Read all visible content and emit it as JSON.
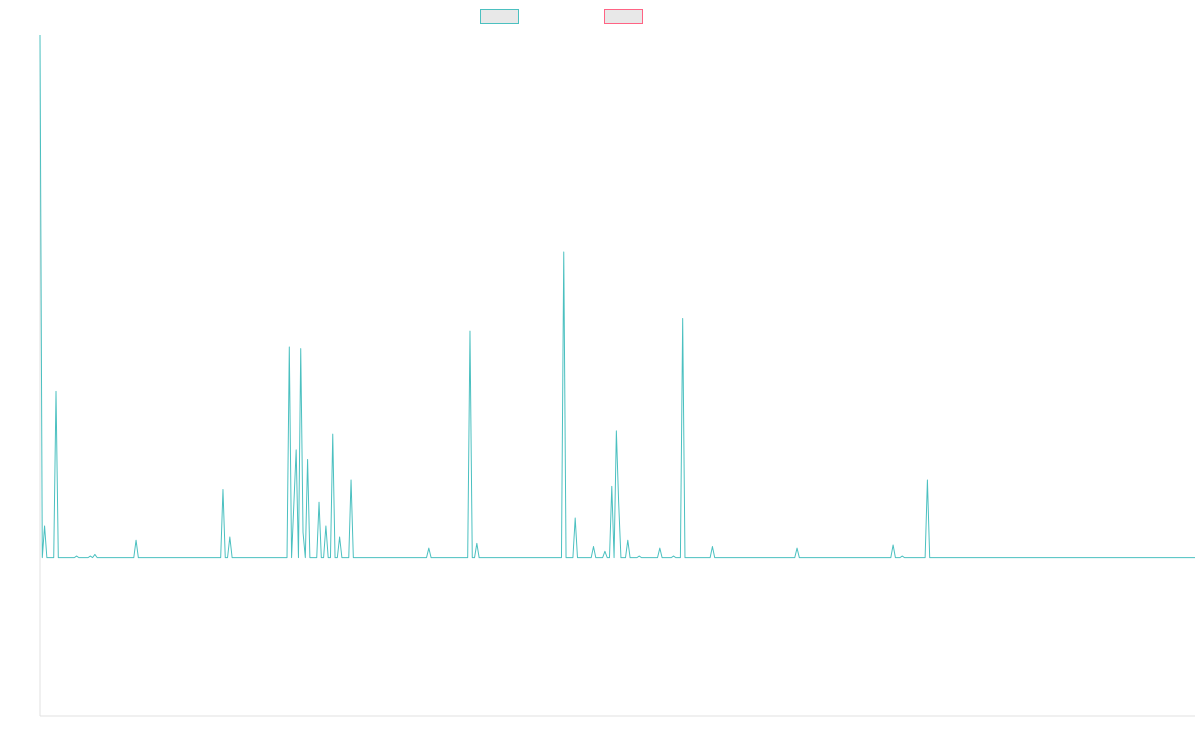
{
  "chart_data": {
    "type": "line",
    "title": "",
    "xlabel": "",
    "ylabel": "",
    "legend_position": "top-center",
    "grid": false,
    "ylim": [
      -1.0,
      3.3
    ],
    "series": [
      {
        "color": "#4bc0c0",
        "values": [
          3.3,
          0.0,
          0.2,
          0.0,
          0.0,
          0.0,
          0.0,
          1.05,
          0.0,
          0.0,
          0.0,
          0.0,
          0.0,
          0.0,
          0.0,
          0.0,
          0.01,
          0.0,
          0.0,
          0.0,
          0.0,
          0.0,
          0.01,
          0.0,
          0.02,
          0.0,
          0.0,
          0.0,
          0.0,
          0.0,
          0.0,
          0.0,
          0.0,
          0.0,
          0.0,
          0.0,
          0.0,
          0.0,
          0.0,
          0.0,
          0.0,
          0.0,
          0.11,
          0.0,
          0.0,
          0.0,
          0.0,
          0.0,
          0.0,
          0.0,
          0.0,
          0.0,
          0.0,
          0.0,
          0.0,
          0.0,
          0.0,
          0.0,
          0.0,
          0.0,
          0.0,
          0.0,
          0.0,
          0.0,
          0.0,
          0.0,
          0.0,
          0.0,
          0.0,
          0.0,
          0.0,
          0.0,
          0.0,
          0.0,
          0.0,
          0.0,
          0.0,
          0.0,
          0.0,
          0.0,
          0.43,
          0.0,
          0.0,
          0.13,
          0.0,
          0.0,
          0.0,
          0.0,
          0.0,
          0.0,
          0.0,
          0.0,
          0.0,
          0.0,
          0.0,
          0.0,
          0.0,
          0.0,
          0.0,
          0.0,
          0.0,
          0.0,
          0.0,
          0.0,
          0.0,
          0.0,
          0.0,
          0.0,
          0.0,
          1.33,
          0.0,
          0.34,
          0.68,
          0.0,
          1.32,
          0.16,
          0.0,
          0.62,
          0.0,
          0.0,
          0.0,
          0.0,
          0.35,
          0.0,
          0.0,
          0.2,
          0.0,
          0.0,
          0.78,
          0.0,
          0.0,
          0.13,
          0.0,
          0.0,
          0.0,
          0.0,
          0.49,
          0.0,
          0.0,
          0.0,
          0.0,
          0.0,
          0.0,
          0.0,
          0.0,
          0.0,
          0.0,
          0.0,
          0.0,
          0.0,
          0.0,
          0.0,
          0.0,
          0.0,
          0.0,
          0.0,
          0.0,
          0.0,
          0.0,
          0.0,
          0.0,
          0.0,
          0.0,
          0.0,
          0.0,
          0.0,
          0.0,
          0.0,
          0.0,
          0.0,
          0.06,
          0.0,
          0.0,
          0.0,
          0.0,
          0.0,
          0.0,
          0.0,
          0.0,
          0.0,
          0.0,
          0.0,
          0.0,
          0.0,
          0.0,
          0.0,
          0.0,
          0.0,
          1.43,
          0.0,
          0.0,
          0.09,
          0.0,
          0.0,
          0.0,
          0.0,
          0.0,
          0.0,
          0.0,
          0.0,
          0.0,
          0.0,
          0.0,
          0.0,
          0.0,
          0.0,
          0.0,
          0.0,
          0.0,
          0.0,
          0.0,
          0.0,
          0.0,
          0.0,
          0.0,
          0.0,
          0.0,
          0.0,
          0.0,
          0.0,
          0.0,
          0.0,
          0.0,
          0.0,
          0.0,
          0.0,
          0.0,
          0.0,
          0.0,
          1.93,
          0.0,
          0.0,
          0.0,
          0.0,
          0.25,
          0.0,
          0.0,
          0.0,
          0.0,
          0.0,
          0.0,
          0.0,
          0.07,
          0.0,
          0.0,
          0.0,
          0.0,
          0.04,
          0.0,
          0.0,
          0.45,
          0.0,
          0.8,
          0.35,
          0.0,
          0.0,
          0.0,
          0.11,
          0.0,
          0.0,
          0.0,
          0.0,
          0.01,
          0.0,
          0.0,
          0.0,
          0.0,
          0.0,
          0.0,
          0.0,
          0.0,
          0.06,
          0.0,
          0.0,
          0.0,
          0.0,
          0.0,
          0.01,
          0.0,
          0.0,
          0.0,
          1.51,
          0.0,
          0.0,
          0.0,
          0.0,
          0.0,
          0.0,
          0.0,
          0.0,
          0.0,
          0.0,
          0.0,
          0.0,
          0.07,
          0.0,
          0.0,
          0.0,
          0.0,
          0.0,
          0.0,
          0.0,
          0.0,
          0.0,
          0.0,
          0.0,
          0.0,
          0.0,
          0.0,
          0.0,
          0.0,
          0.0,
          0.0,
          0.0,
          0.0,
          0.0,
          0.0,
          0.0,
          0.0,
          0.0,
          0.0,
          0.0,
          0.0,
          0.0,
          0.0,
          0.0,
          0.0,
          0.0,
          0.0,
          0.0,
          0.0,
          0.06,
          0.0,
          0.0,
          0.0,
          0.0,
          0.0,
          0.0,
          0.0,
          0.0,
          0.0,
          0.0,
          0.0,
          0.0,
          0.0,
          0.0,
          0.0,
          0.0,
          0.0,
          0.0,
          0.0,
          0.0,
          0.0,
          0.0,
          0.0,
          0.0,
          0.0,
          0.0,
          0.0,
          0.0,
          0.0,
          0.0,
          0.0,
          0.0,
          0.0,
          0.0,
          0.0,
          0.0,
          0.0,
          0.0,
          0.0,
          0.0,
          0.0,
          0.08,
          0.0,
          0.0,
          0.0,
          0.01,
          0.0,
          0.0,
          0.0,
          0.0,
          0.0,
          0.0,
          0.0,
          0.0,
          0.0,
          0.0,
          0.49,
          0.0,
          0.0,
          0.0,
          0.0,
          0.0,
          0.0,
          0.0,
          0.0,
          0.0,
          0.0,
          0.0,
          0.0,
          0.0,
          0.0,
          0.0,
          0.0,
          0.0,
          0.0,
          0.0,
          0.0,
          0.0,
          0.0,
          0.0,
          0.0,
          0.0,
          0.0,
          0.0,
          0.0,
          0.0,
          0.0,
          0.0,
          0.0,
          0.0,
          0.0,
          0.0,
          0.0,
          0.0,
          0.0,
          0.0,
          0.0,
          0.0,
          0.0,
          0.0,
          0.0,
          0.0,
          0.0,
          0.0,
          0.0,
          0.0,
          0.0,
          0.0,
          0.0,
          0.0,
          0.0,
          0.0,
          0.0,
          0.0,
          0.0,
          0.0,
          0.0,
          0.0,
          0.0,
          0.0,
          0.0,
          0.0,
          0.0,
          0.0,
          0.0,
          0.0,
          0.0,
          0.0,
          0.0,
          0.0,
          0.0,
          0.0,
          0.0,
          0.0,
          0.0,
          0.0,
          0.0,
          0.0,
          0.0,
          0.0,
          0.0,
          0.0,
          0.0,
          0.0,
          0.0,
          0.0,
          0.0,
          0.0,
          0.0,
          0.0,
          0.0,
          0.0,
          0.0,
          0.0,
          0.0,
          0.0,
          0.0,
          0.0,
          0.0,
          0.0,
          0.0,
          0.0,
          0.0,
          0.0,
          0.0,
          0.0,
          0.0,
          0.0,
          0.0,
          0.0,
          0.0,
          0.0,
          0.0,
          0.0
        ]
      },
      {
        "color": "#ff6384",
        "values": []
      }
    ]
  }
}
